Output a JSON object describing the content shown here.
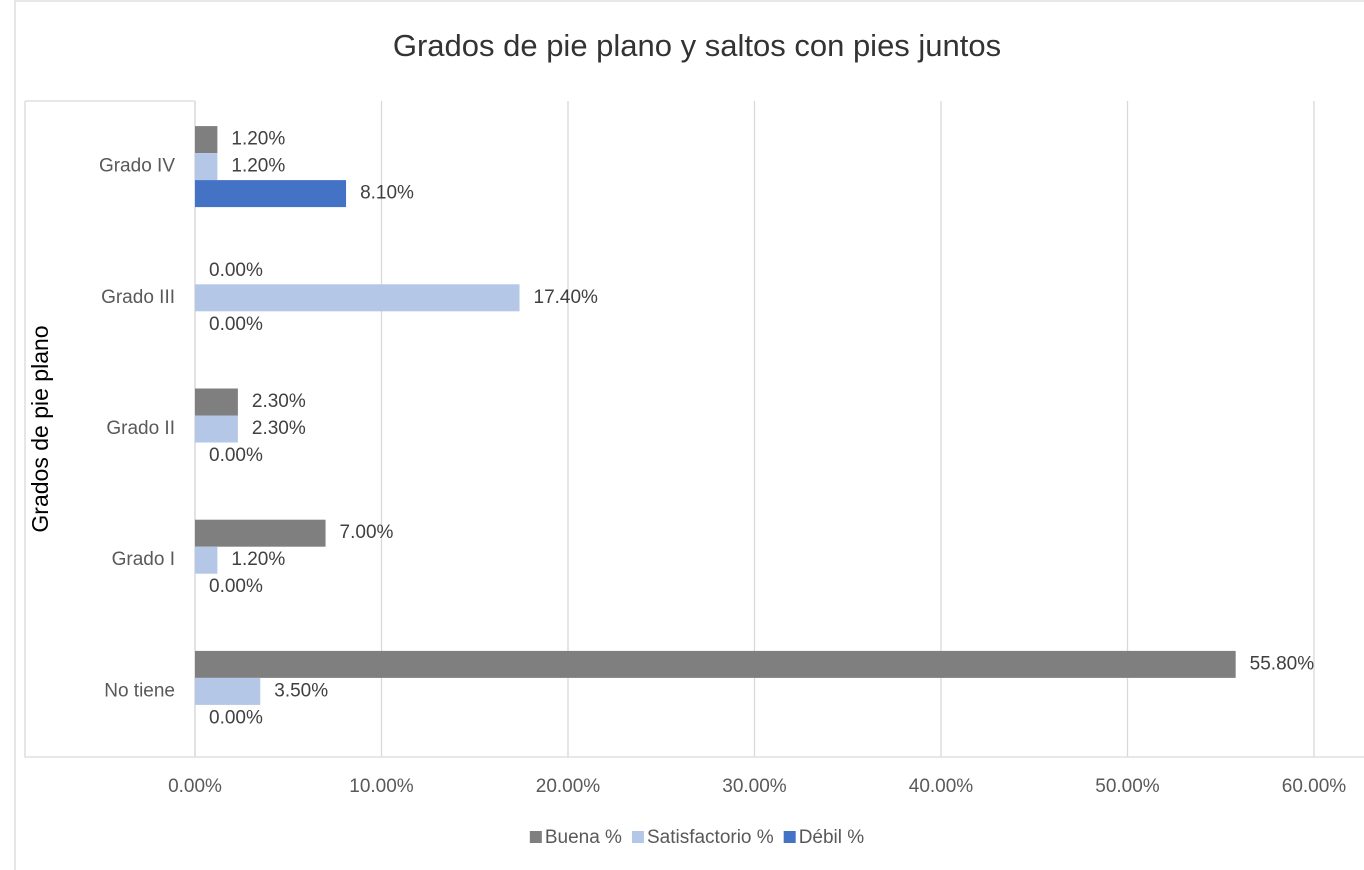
{
  "chart_data": {
    "type": "bar",
    "orientation": "horizontal",
    "title": "Grados de pie plano y saltos con pies juntos",
    "y_label": "Grados de pie plano",
    "categories": [
      "Grado IV",
      "Grado III",
      "Grado II",
      "Grado I",
      "No tiene"
    ],
    "series": [
      {
        "name": "Buena %",
        "color": "#7f7f7f",
        "values": [
          1.2,
          0,
          2.3,
          7.0,
          55.8
        ],
        "value_labels": [
          "1.20%",
          "0.00%",
          "2.30%",
          "7.00%",
          "55.80%"
        ]
      },
      {
        "name": "Satisfactorio %",
        "color": "#b4c7e7",
        "values": [
          1.2,
          17.4,
          2.3,
          1.2,
          3.5
        ],
        "value_labels": [
          "1.20%",
          "17.40%",
          "2.30%",
          "1.20%",
          "3.50%"
        ]
      },
      {
        "name": "Débil %",
        "color": "#4472c4",
        "values": [
          8.1,
          0,
          0,
          0,
          0
        ],
        "value_labels": [
          "8.10%",
          "0.00%",
          "0.00%",
          "0.00%",
          "0.00%"
        ]
      }
    ],
    "xlim": [
      0,
      60
    ],
    "xticks": [
      {
        "value": 0,
        "label": "0.00%"
      },
      {
        "value": 10,
        "label": "10.00%"
      },
      {
        "value": 20,
        "label": "20.00%"
      },
      {
        "value": 30,
        "label": "30.00%"
      },
      {
        "value": 40,
        "label": "40.00%"
      },
      {
        "value": 50,
        "label": "50.00%"
      },
      {
        "value": 60,
        "label": "60.00%"
      }
    ],
    "grid": true,
    "legend": "bottom"
  }
}
